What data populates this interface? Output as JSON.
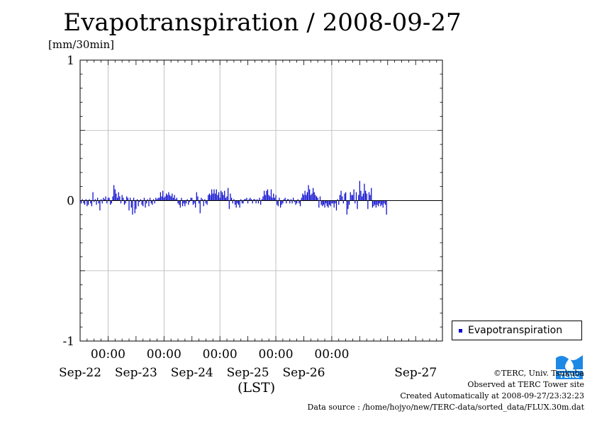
{
  "chart_data": {
    "type": "bar",
    "title": "Evapotranspiration / 2008-09-27",
    "ylabel": "[mm/30min]",
    "xlabel": "(LST)",
    "ylim": [
      -1,
      1
    ],
    "yticks": [
      "1",
      "0",
      "-1"
    ],
    "xlim": [
      "2008-09-21T12:00",
      "2008-09-27T23:30"
    ],
    "xticks": [
      {
        "time": "2008-09-22T00:00",
        "time_label": "00:00",
        "date_label": "Sep-22"
      },
      {
        "time": "2008-09-23T00:00",
        "time_label": "00:00",
        "date_label": "Sep-23"
      },
      {
        "time": "2008-09-24T00:00",
        "time_label": "00:00",
        "date_label": "Sep-24"
      },
      {
        "time": "2008-09-25T00:00",
        "time_label": "00:00",
        "date_label": "Sep-25"
      },
      {
        "time": "2008-09-26T00:00",
        "time_label": "00:00",
        "date_label": "Sep-26"
      }
    ],
    "extra_date_label": {
      "time": "2008-09-27T12:00",
      "label": "Sep-27"
    },
    "grid": true,
    "legend_position": "bottom-right, outside plot",
    "interval_minutes": 30,
    "series": [
      {
        "name": "Evapotranspiration",
        "color": "#0000cc",
        "start": "2008-09-21T12:00",
        "values": [
          -0.01,
          -0.02,
          0.01,
          -0.02,
          -0.03,
          0.01,
          -0.04,
          -0.03,
          0.01,
          -0.02,
          -0.04,
          0.06,
          -0.01,
          0.01,
          -0.03,
          0.02,
          -0.02,
          -0.07,
          0.01,
          -0.02,
          0.02,
          0.01,
          0.03,
          -0.02,
          0.02,
          0.02,
          -0.03,
          -0.02,
          0.03,
          0.11,
          0.08,
          0.05,
          0.02,
          0.06,
          0.03,
          -0.02,
          0.04,
          0.02,
          -0.03,
          -0.02,
          0.03,
          0.02,
          -0.07,
          0.02,
          -0.05,
          -0.1,
          0.02,
          -0.09,
          -0.06,
          0.01,
          -0.04,
          -0.01,
          0.01,
          -0.03,
          -0.04,
          0.02,
          -0.05,
          -0.02,
          0.01,
          -0.04,
          0.02,
          -0.02,
          -0.03,
          0.01,
          -0.02,
          0.02,
          0.01,
          0.02,
          0.02,
          0.06,
          0.03,
          0.07,
          0.02,
          0.03,
          0.05,
          0.04,
          0.06,
          0.04,
          0.03,
          0.05,
          0.02,
          0.04,
          0.01,
          0.02,
          -0.02,
          -0.03,
          -0.05,
          0.02,
          -0.04,
          -0.02,
          -0.04,
          -0.02,
          0.01,
          -0.03,
          -0.01,
          0.02,
          0.02,
          -0.03,
          -0.02,
          -0.05,
          0.06,
          0.03,
          -0.02,
          -0.09,
          0.02,
          0.01,
          -0.04,
          0.01,
          -0.02,
          -0.03,
          0.04,
          0.05,
          0.04,
          0.08,
          0.05,
          0.08,
          0.05,
          0.08,
          0.04,
          0.06,
          0.02,
          0.07,
          0.06,
          0.04,
          0.07,
          0.02,
          0.03,
          0.09,
          -0.06,
          0.05,
          0.02,
          -0.02,
          0.01,
          -0.03,
          -0.05,
          -0.02,
          -0.03,
          -0.05,
          0.01,
          -0.02,
          -0.02,
          0.01,
          0.01,
          0.02,
          -0.02,
          0.01,
          0.02,
          0.01,
          -0.02,
          0.01,
          0.01,
          -0.02,
          0.01,
          -0.02,
          0.02,
          -0.03,
          0.01,
          0.03,
          0.07,
          0.04,
          0.07,
          0.08,
          0.04,
          0.03,
          0.08,
          0.02,
          0.05,
          0.02,
          0.04,
          -0.03,
          -0.04,
          0.02,
          -0.05,
          -0.03,
          -0.02,
          0.01,
          0.02,
          -0.02,
          0.01,
          0.01,
          -0.02,
          0.01,
          -0.02,
          0.02,
          -0.01,
          -0.03,
          -0.02,
          0.01,
          -0.02,
          -0.04,
          0.02,
          0.05,
          0.04,
          0.07,
          0.04,
          0.06,
          0.11,
          0.08,
          0.04,
          0.05,
          0.09,
          0.06,
          0.04,
          0.03,
          0.02,
          -0.05,
          0.03,
          -0.03,
          -0.04,
          -0.03,
          -0.05,
          -0.02,
          -0.04,
          -0.05,
          -0.03,
          -0.04,
          -0.02,
          -0.02,
          -0.05,
          -0.02,
          -0.07,
          0.01,
          -0.03,
          0.04,
          0.07,
          0.03,
          -0.02,
          0.05,
          0.06,
          -0.1,
          -0.06,
          -0.03,
          0.06,
          0.04,
          0.04,
          0.08,
          -0.02,
          0.06,
          -0.06,
          0.04,
          0.14,
          0.07,
          0.03,
          0.05,
          0.12,
          0.07,
          0.05,
          -0.06,
          0.06,
          0.04,
          0.09,
          -0.05,
          -0.04,
          -0.03,
          -0.05,
          -0.03,
          -0.04,
          -0.02,
          -0.04,
          -0.03,
          -0.05,
          -0.02,
          -0.03,
          -0.1
        ]
      }
    ]
  },
  "credits": {
    "copyright": "©TERC, Univ. Tsukuba",
    "observed": "Observed at TERC Tower site",
    "created": "Created Automatically at 2008-09-27/23:32:23",
    "source": "Data source : /home/hojyo/new/TERC-data/sorted_data/FLUX.30m.dat"
  },
  "logo": {
    "text": "TERC",
    "color": "#1e88e5"
  }
}
